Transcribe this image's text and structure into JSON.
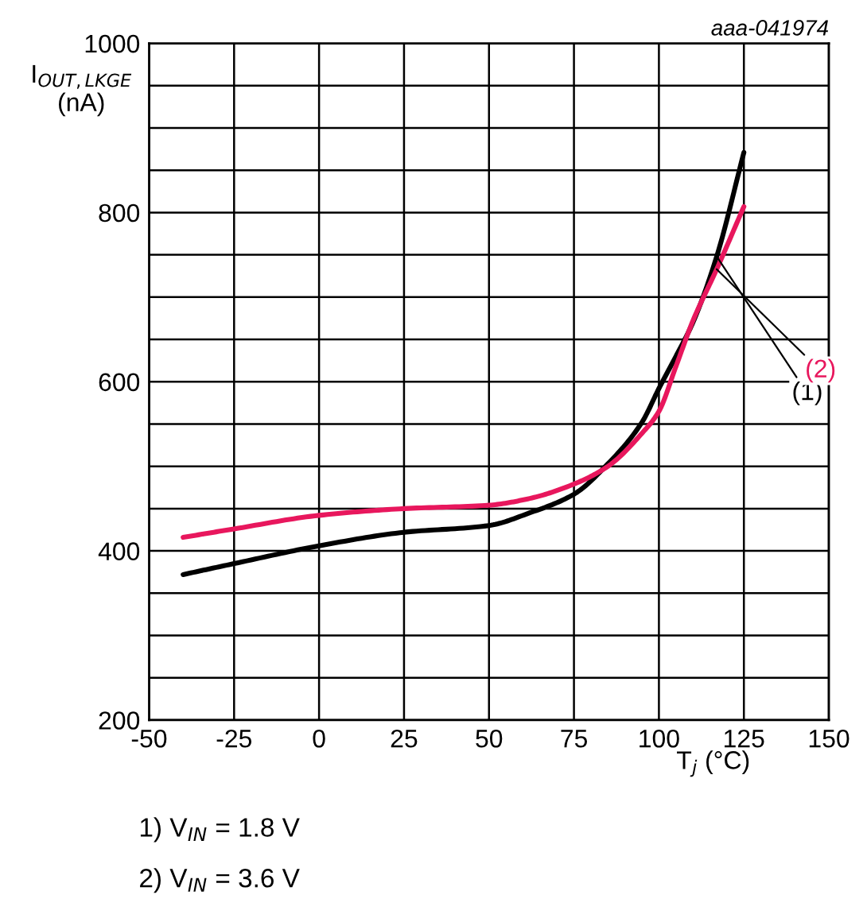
{
  "chart_data": {
    "type": "line",
    "xlabel": "T$_{j}$ (°C)",
    "ylabel": "I$_{OUT,LKGE}$\n(nA)",
    "x": [
      -40,
      -25,
      0,
      25,
      50,
      62,
      75,
      85,
      95,
      100,
      105,
      110,
      117,
      125
    ],
    "series": [
      {
        "name": "(1)",
        "color": "#000000",
        "values": [
          372,
          385,
          406,
          422,
          430,
          445,
          467,
          503,
          552,
          592,
          630,
          670,
          748,
          871
        ]
      },
      {
        "name": "(2)",
        "color": "#e8175d",
        "values": [
          416,
          426,
          442,
          450,
          454,
          462,
          479,
          500,
          539,
          565,
          618,
          672,
          733,
          807
        ]
      }
    ],
    "xlim": [
      -50,
      150
    ],
    "xticks": [
      -50,
      -25,
      0,
      25,
      50,
      75,
      100,
      125,
      150
    ],
    "ylim": [
      200,
      1000
    ],
    "yticks": [
      200,
      {
        "value": 250,
        "label": null
      },
      {
        "value": 300,
        "label": null
      },
      {
        "value": 350,
        "label": null
      },
      400,
      {
        "value": 450,
        "label": null
      },
      {
        "value": 500,
        "label": null
      },
      {
        "value": 550,
        "label": null
      },
      600,
      {
        "value": 650,
        "label": null
      },
      {
        "value": 700,
        "label": null
      },
      {
        "value": 750,
        "label": null
      },
      800,
      {
        "value": 850,
        "label": null
      },
      {
        "value": 900,
        "label": null
      },
      {
        "value": 950,
        "label": null
      },
      1000
    ],
    "grid": true,
    "line_style": "solid",
    "marker": "none",
    "annotations": [
      "aaa-041974",
      "1) V$_{IN}$ = 1.8 V",
      "2) V$_{IN}$ = 3.6 V"
    ]
  }
}
